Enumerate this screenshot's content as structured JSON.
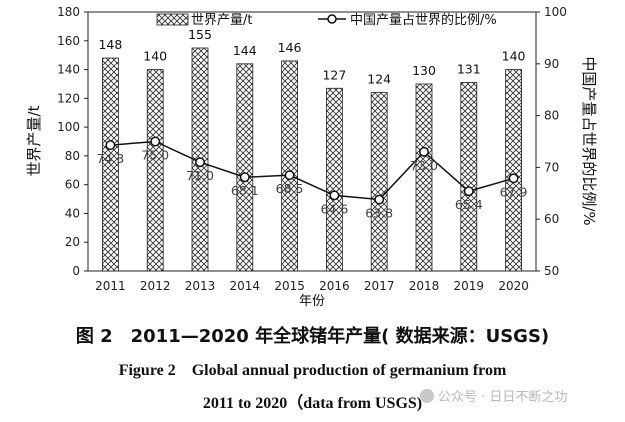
{
  "chart_data": {
    "type": "bar+line",
    "categories": [
      "2011",
      "2012",
      "2013",
      "2014",
      "2015",
      "2016",
      "2017",
      "2018",
      "2019",
      "2020"
    ],
    "series": [
      {
        "name": "世界产量/t",
        "kind": "bar",
        "axis": "left",
        "values": [
          148,
          140,
          155,
          144,
          146,
          127,
          124,
          130,
          131,
          140
        ]
      },
      {
        "name": "中国产量占世界的比例/%",
        "kind": "line",
        "axis": "right",
        "values": [
          74.3,
          75.0,
          71.0,
          68.1,
          68.5,
          64.6,
          63.8,
          73.0,
          65.4,
          67.9
        ]
      }
    ],
    "xlabel": "年份",
    "ylabel_left": "世界产量/t",
    "ylabel_right": "中国产量占世界的比例/%",
    "ylim_left": [
      0,
      180
    ],
    "yticks_left": [
      0,
      20,
      40,
      60,
      80,
      100,
      120,
      140,
      160,
      180
    ],
    "ylim_right": [
      50,
      100
    ],
    "yticks_right": [
      50,
      60,
      70,
      80,
      90,
      100
    ],
    "legend_position": "top"
  },
  "caption": {
    "zh": "图 2　2011—2020 年全球锗年产量( 数据来源：USGS)",
    "en_line1": "Figure 2　Global annual production of germanium from",
    "en_line2": "2011 to 2020（data from USGS)"
  },
  "watermark": "公众号 · 日日不断之功"
}
